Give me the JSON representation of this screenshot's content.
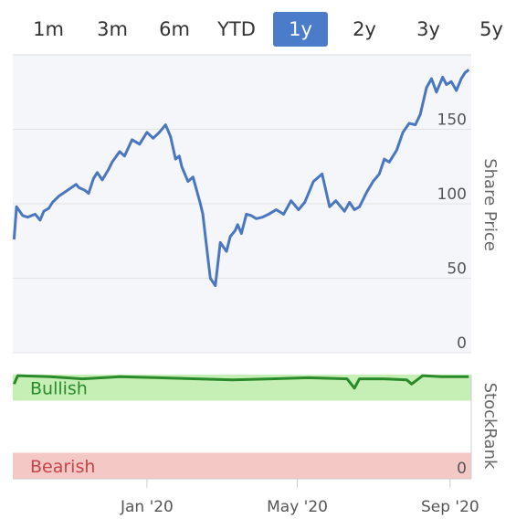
{
  "ranges": {
    "items": [
      "1m",
      "3m",
      "6m",
      "YTD",
      "1y",
      "2y",
      "3y",
      "5y"
    ],
    "selected": "1y"
  },
  "colors": {
    "accent": "#4a7cc9",
    "price_line": "#4a77c0",
    "rank_line": "#2a8a2a",
    "bullish_band": "#c6efb5",
    "bearish_band": "#f3c8c5",
    "bullish_text": "#2a8a2a",
    "bearish_text": "#c9434a"
  },
  "chart_data": [
    {
      "type": "line",
      "ylabel": "Share Price",
      "ylim": [
        0,
        200
      ],
      "yticks": [
        0,
        50,
        100,
        150
      ],
      "xlim": [
        "2019-09-15",
        "2020-09-18"
      ],
      "grid": true,
      "series": [
        {
          "x": [
            "2019-09-16",
            "2019-09-18",
            "2019-09-23",
            "2019-09-27",
            "2019-10-03",
            "2019-10-07",
            "2019-10-10",
            "2019-10-14",
            "2019-10-17",
            "2019-10-22",
            "2019-10-29",
            "2019-11-05",
            "2019-11-07",
            "2019-11-12",
            "2019-11-15",
            "2019-11-19",
            "2019-11-22",
            "2019-11-26",
            "2019-12-01",
            "2019-12-04",
            "2019-12-10",
            "2019-12-14",
            "2019-12-20",
            "2019-12-26",
            "2020-01-01",
            "2020-01-06",
            "2020-01-11",
            "2020-01-16",
            "2020-01-20",
            "2020-01-24",
            "2020-01-27",
            "2020-01-29",
            "2020-02-03",
            "2020-02-07",
            "2020-02-11",
            "2020-02-13",
            "2020-02-15",
            "2020-02-17",
            "2020-02-21",
            "2020-02-25",
            "2020-02-29",
            "2020-03-05",
            "2020-03-08",
            "2020-03-12",
            "2020-03-14",
            "2020-03-17",
            "2020-03-21",
            "2020-03-25",
            "2020-03-29",
            "2020-04-03",
            "2020-04-08",
            "2020-04-14",
            "2020-04-20",
            "2020-04-26",
            "2020-05-02",
            "2020-05-07",
            "2020-05-14",
            "2020-05-21",
            "2020-05-27",
            "2020-06-01",
            "2020-06-08",
            "2020-06-12",
            "2020-06-16",
            "2020-06-20",
            "2020-06-26",
            "2020-07-01",
            "2020-07-06",
            "2020-07-10",
            "2020-07-14",
            "2020-07-20",
            "2020-07-25",
            "2020-07-30",
            "2020-08-04",
            "2020-08-08",
            "2020-08-13",
            "2020-08-17",
            "2020-08-21",
            "2020-08-26",
            "2020-08-29",
            "2020-09-02",
            "2020-09-06",
            "2020-09-10",
            "2020-09-13",
            "2020-09-16"
          ],
          "y": [
            76,
            98,
            92,
            91,
            93,
            89,
            95,
            97,
            101,
            105,
            109,
            113,
            111,
            109,
            107,
            117,
            121,
            116,
            123,
            128,
            135,
            132,
            143,
            140,
            148,
            144,
            148,
            153,
            145,
            130,
            132,
            125,
            115,
            118,
            106,
            100,
            93,
            78,
            50,
            45,
            74,
            68,
            78,
            82,
            86,
            80,
            93,
            92,
            90,
            91,
            93,
            96,
            93,
            102,
            96,
            101,
            115,
            120,
            98,
            102,
            95,
            101,
            96,
            98,
            108,
            115,
            120,
            130,
            128,
            136,
            148,
            154,
            153,
            160,
            178,
            184,
            175,
            185,
            180,
            182,
            176,
            184,
            188,
            190
          ]
        }
      ]
    },
    {
      "type": "line",
      "ylabel": "StockRank",
      "ylim": [
        0,
        100
      ],
      "yticks": [
        0
      ],
      "bands": [
        {
          "label": "Bullish",
          "from": 75,
          "to": 100
        },
        {
          "label": "Bearish",
          "from": 0,
          "to": 25
        }
      ],
      "xticks": [
        "Jan '20",
        "May '20",
        "Sep '20"
      ],
      "series": [
        {
          "x": [
            "2019-09-16",
            "2019-09-19",
            "2019-10-15",
            "2019-11-10",
            "2019-12-10",
            "2020-01-10",
            "2020-02-10",
            "2020-03-10",
            "2020-04-10",
            "2020-05-10",
            "2020-06-10",
            "2020-06-16",
            "2020-06-20",
            "2020-07-10",
            "2020-07-28",
            "2020-08-01",
            "2020-08-10",
            "2020-08-25",
            "2020-09-16"
          ],
          "y": [
            91,
            99,
            98,
            96,
            98,
            97,
            96,
            95,
            96,
            97,
            96,
            87,
            96,
            96,
            95,
            91,
            99,
            98,
            98
          ]
        }
      ]
    }
  ]
}
